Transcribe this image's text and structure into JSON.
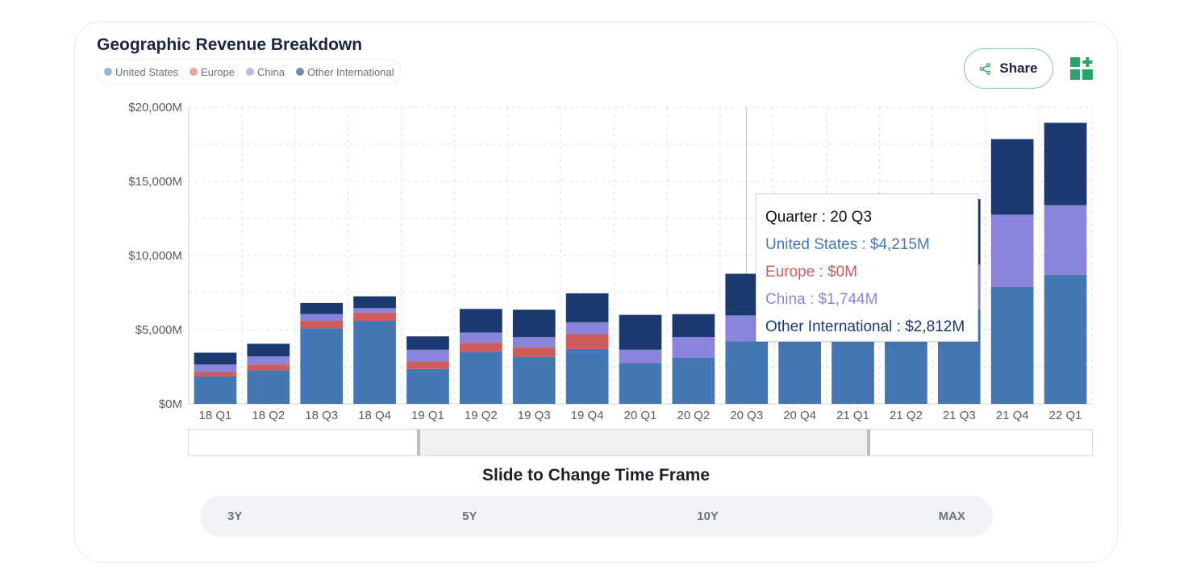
{
  "title": "Geographic Revenue Breakdown",
  "share_label": "Share",
  "colors": {
    "us": "#4577b4",
    "europe": "#cf5c5a",
    "china": "#8a84dc",
    "other": "#1b3a70",
    "legend_us": "#97b4d6",
    "legend_europe": "#e9a3a2",
    "legend_china": "#bcb7ee",
    "legend_other": "#7787a8",
    "accent": "#2aa56a"
  },
  "chart_data": {
    "type": "bar",
    "stacked": true,
    "title": "Geographic Revenue Breakdown",
    "categories": [
      "18 Q1",
      "18 Q2",
      "18 Q3",
      "18 Q4",
      "19 Q1",
      "19 Q2",
      "19 Q3",
      "19 Q4",
      "20 Q1",
      "20 Q2",
      "20 Q3",
      "20 Q4",
      "21 Q1",
      "21 Q2",
      "21 Q3",
      "21 Q4",
      "22 Q1"
    ],
    "y_ticks": [
      "$0M",
      "$5,000M",
      "$10,000M",
      "$15,000M",
      "$20,000M"
    ],
    "ylim": [
      0,
      20000
    ],
    "grid": true,
    "legend_position": "top-left",
    "series": [
      {
        "name": "United States",
        "key": "us",
        "values": [
          1850,
          2250,
          5100,
          5600,
          2350,
          3500,
          3150,
          3700,
          2750,
          3100,
          4215,
          4300,
          4350,
          4400,
          6400,
          7900,
          8700
        ]
      },
      {
        "name": "Europe",
        "key": "europe",
        "values": [
          300,
          400,
          500,
          550,
          500,
          600,
          650,
          1000,
          0,
          0,
          0,
          0,
          0,
          0,
          0,
          0,
          0
        ]
      },
      {
        "name": "China",
        "key": "china",
        "values": [
          500,
          550,
          450,
          300,
          800,
          700,
          700,
          800,
          900,
          1400,
          1744,
          2400,
          2500,
          2700,
          3000,
          4850,
          4700
        ]
      },
      {
        "name": "Other International",
        "key": "other",
        "values": [
          800,
          850,
          750,
          800,
          900,
          1600,
          1850,
          1950,
          2350,
          1550,
          2812,
          2800,
          3200,
          3500,
          4400,
          5100,
          5550
        ]
      }
    ]
  },
  "slider_caption": "Slide to Change Time Frame",
  "range_buttons": [
    "3Y",
    "5Y",
    "10Y",
    "MAX"
  ],
  "tooltip": {
    "quarter": "Quarter : 20 Q3",
    "us": "United States : $4,215M",
    "europe": "Europe : $0M",
    "china": "China : $1,744M",
    "other": "Other International : $2,812M"
  }
}
